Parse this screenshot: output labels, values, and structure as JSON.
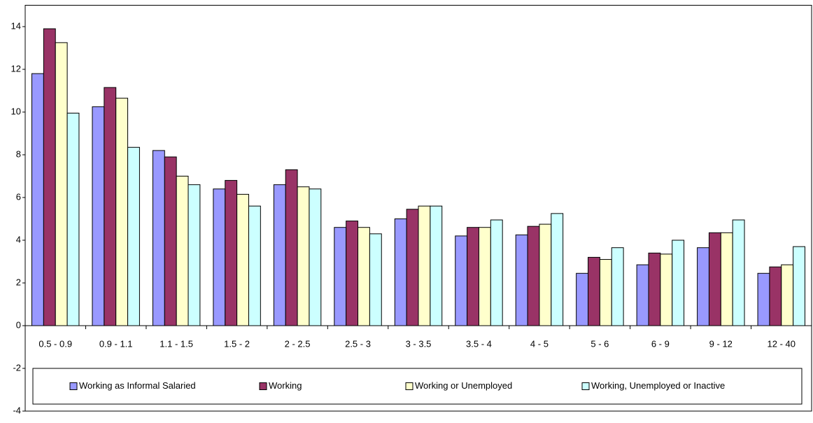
{
  "chart_data": {
    "type": "bar",
    "categories": [
      "0.5 - 0.9",
      "0.9 - 1.1",
      "1.1 - 1.5",
      "1.5 - 2",
      "2 - 2.5",
      "2.5 - 3",
      "3 - 3.5",
      "3.5 - 4",
      "4 - 5",
      "5 - 6",
      "6 - 9",
      "9 - 12",
      "12 - 40"
    ],
    "series": [
      {
        "name": "Working as Informal Salaried",
        "color": "#9999ff",
        "values": [
          11.8,
          10.25,
          8.2,
          6.4,
          6.6,
          4.6,
          5.0,
          4.2,
          4.25,
          2.45,
          2.85,
          3.65,
          2.45
        ]
      },
      {
        "name": "Working",
        "color": "#993366",
        "values": [
          13.9,
          11.15,
          7.9,
          6.8,
          7.3,
          4.9,
          5.45,
          4.6,
          4.65,
          3.2,
          3.4,
          4.35,
          2.75
        ]
      },
      {
        "name": "Working or Unemployed",
        "color": "#ffffcc",
        "values": [
          13.25,
          10.65,
          7.0,
          6.15,
          6.5,
          4.6,
          5.6,
          4.6,
          4.75,
          3.1,
          3.35,
          4.35,
          2.85
        ]
      },
      {
        "name": "Working, Unemployed or Inactive",
        "color": "#ccffff",
        "values": [
          9.95,
          8.35,
          6.6,
          5.6,
          6.4,
          4.3,
          5.6,
          4.95,
          5.25,
          3.65,
          4.0,
          4.95,
          3.7
        ]
      }
    ],
    "ylim": [
      -4,
      15
    ],
    "yticks": [
      -4,
      -2,
      0,
      2,
      4,
      6,
      8,
      10,
      12,
      14
    ],
    "grid": false,
    "legend": "bottom"
  }
}
